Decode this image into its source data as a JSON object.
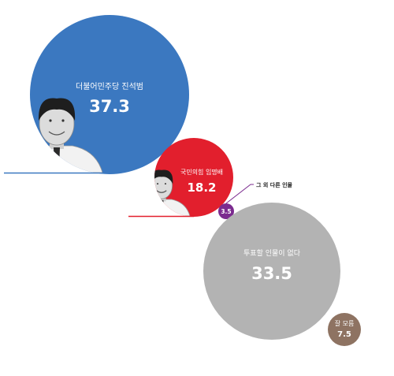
{
  "chart_data": {
    "type": "bubble",
    "title": "",
    "unit": "%",
    "items": [
      {
        "name": "더불어민주당 진석범",
        "value": 37.3,
        "color": "#3b78c0",
        "label_color": "#ffffff",
        "has_photo": true
      },
      {
        "name": "국민의힘 임명배",
        "value": 18.2,
        "color": "#e21f2d",
        "label_color": "#ffffff",
        "has_photo": true
      },
      {
        "name": "그 외 다른 인물",
        "value": 3.5,
        "color": "#7b2b8f",
        "label_color": "#ffffff",
        "callout": true
      },
      {
        "name": "투표할 인물이 없다",
        "value": 33.5,
        "color": "#b3b3b3",
        "label_color": "#ffffff",
        "has_photo": false
      },
      {
        "name": "잘 모름",
        "value": 7.5,
        "color": "#8e7362",
        "label_color": "#ffffff",
        "has_photo": false
      }
    ]
  }
}
